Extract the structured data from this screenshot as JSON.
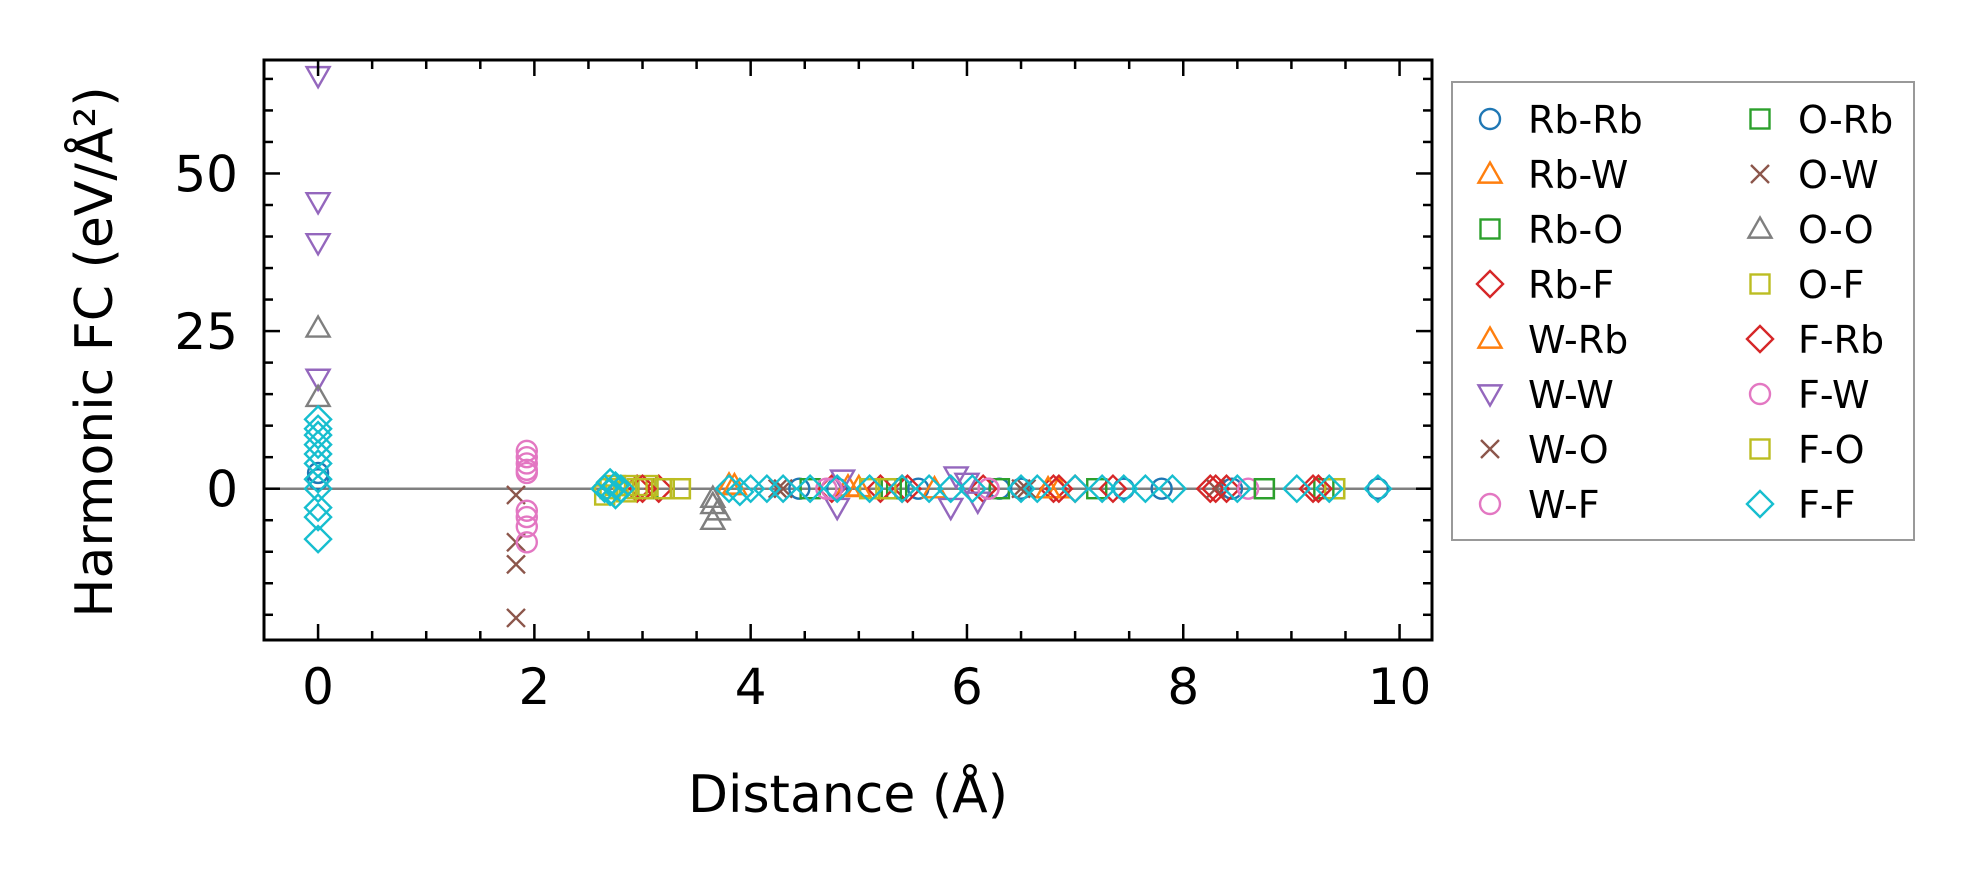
{
  "chart_data": {
    "type": "scatter",
    "xlabel": "Distance (Å)",
    "ylabel": "Harmonic FC (eV/Å²)",
    "xlim": [
      -0.5,
      10.3
    ],
    "ylim": [
      -24,
      68
    ],
    "xticks": [
      0,
      2,
      4,
      6,
      8,
      10
    ],
    "yticks": [
      0,
      25,
      50
    ],
    "grid": false,
    "legend_placement": "outside right",
    "series": [
      {
        "name": "Rb-Rb",
        "marker": "circle",
        "color": "#1f77b4",
        "x": [
          0,
          0,
          4.45,
          4.8,
          5.55,
          6.3,
          6.5,
          7.45,
          7.8,
          8.45,
          9.8
        ],
        "y": [
          1.5,
          2.5,
          0,
          0,
          0,
          0,
          0,
          0,
          0,
          0,
          0
        ]
      },
      {
        "name": "Rb-W",
        "marker": "triangle-up",
        "color": "#ff7f0e",
        "x": [
          3.85,
          4.9,
          5.7,
          6.85
        ],
        "y": [
          0.5,
          0.3,
          0,
          0
        ]
      },
      {
        "name": "Rb-O",
        "marker": "square",
        "color": "#2ca02c",
        "x": [
          3.05,
          4.55,
          5.35,
          6.3,
          7.2,
          8.75,
          9.3
        ],
        "y": [
          0,
          0,
          0,
          0,
          0,
          0,
          0
        ]
      },
      {
        "name": "Rb-F",
        "marker": "diamond",
        "color": "#d62728",
        "x": [
          2.95,
          3.15,
          4.75,
          5.2,
          5.45,
          6.15,
          6.8,
          7.0,
          7.35,
          8.25,
          8.4,
          9.2
        ],
        "y": [
          0,
          0,
          0,
          0,
          0,
          0,
          0,
          0,
          0,
          0,
          0,
          0
        ]
      },
      {
        "name": "W-Rb",
        "marker": "triangle-up",
        "color": "#ff7f0e",
        "x": [
          3.8,
          5.0,
          6.75
        ],
        "y": [
          0.6,
          0.2,
          0
        ]
      },
      {
        "name": "W-W",
        "marker": "triangle-down",
        "color": "#9467bd",
        "x": [
          0,
          0,
          0,
          0,
          4.85,
          4.8,
          5.9,
          6.0,
          5.85,
          6.1
        ],
        "y": [
          65.5,
          45.5,
          39,
          17.5,
          1.5,
          -3,
          2,
          1,
          -3,
          -2
        ]
      },
      {
        "name": "W-O",
        "marker": "x",
        "color": "#8c564b",
        "x": [
          1.83,
          1.83,
          1.83,
          1.83,
          4.3,
          6.5,
          8.3
        ],
        "y": [
          -1,
          -8.5,
          -12,
          -20.5,
          0,
          0,
          0
        ]
      },
      {
        "name": "W-F",
        "marker": "circle",
        "color": "#e377c2",
        "x": [
          1.93,
          1.93,
          1.93,
          1.93,
          1.93,
          1.93,
          4.7,
          6.2,
          8.6
        ],
        "y": [
          6,
          4,
          2.5,
          -3.5,
          -6,
          -8.5,
          0,
          0,
          0
        ]
      },
      {
        "name": "O-Rb",
        "marker": "square",
        "color": "#2ca02c",
        "x": [
          3.2,
          5.3,
          8.75,
          9.4
        ],
        "y": [
          0,
          0,
          0,
          0
        ]
      },
      {
        "name": "O-W",
        "marker": "x",
        "color": "#8c564b",
        "x": [
          4.25,
          6.55
        ],
        "y": [
          0,
          0
        ]
      },
      {
        "name": "O-O",
        "marker": "triangle-up",
        "color": "#7f7f7f",
        "x": [
          0,
          0,
          3.65,
          3.65,
          3.7,
          3.65
        ],
        "y": [
          25.5,
          14.5,
          -1.5,
          -2.5,
          -3.5,
          -5
        ]
      },
      {
        "name": "O-F",
        "marker": "square",
        "color": "#bcbd22",
        "x": [
          2.65,
          2.75,
          2.85,
          2.95,
          3.05,
          3.2,
          3.35,
          5.1,
          5.25,
          9.4
        ],
        "y": [
          -1,
          0.5,
          -0.5,
          0,
          0.5,
          0,
          0,
          0,
          0,
          0
        ]
      },
      {
        "name": "F-Rb",
        "marker": "diamond",
        "color": "#d62728",
        "x": [
          3.0,
          5.4,
          6.85,
          8.3,
          9.25
        ],
        "y": [
          0,
          0,
          0,
          0,
          0
        ]
      },
      {
        "name": "F-W",
        "marker": "circle",
        "color": "#e377c2",
        "x": [
          1.93,
          1.93,
          1.93,
          4.75,
          6.2
        ],
        "y": [
          5,
          3,
          -4.5,
          0,
          0
        ]
      },
      {
        "name": "F-O",
        "marker": "square",
        "color": "#bcbd22",
        "x": [
          2.7,
          2.85,
          3.0,
          3.35
        ],
        "y": [
          0,
          0.5,
          0,
          0
        ]
      },
      {
        "name": "F-F",
        "marker": "diamond",
        "color": "#17becf",
        "x": [
          0,
          0,
          0,
          0,
          0,
          0,
          0,
          0,
          0,
          0,
          0,
          2.65,
          2.7,
          2.75,
          2.8,
          2.7,
          2.75,
          3.8,
          3.9,
          4.0,
          4.15,
          4.3,
          4.55,
          4.8,
          5.1,
          5.4,
          5.65,
          5.85,
          6.05,
          6.5,
          6.65,
          7.0,
          7.25,
          7.45,
          7.65,
          7.9,
          8.5,
          9.05,
          9.35,
          9.8
        ],
        "y": [
          11,
          9.5,
          8.5,
          7,
          5.5,
          4,
          1.5,
          0,
          -3,
          -4.5,
          -8,
          0,
          -0.5,
          0.5,
          0,
          1,
          -1,
          0,
          -0.5,
          0,
          0,
          0,
          0,
          0,
          0,
          0,
          0,
          0,
          0,
          0,
          0,
          0,
          0,
          0,
          0,
          0,
          0,
          0,
          0,
          0
        ]
      }
    ]
  }
}
